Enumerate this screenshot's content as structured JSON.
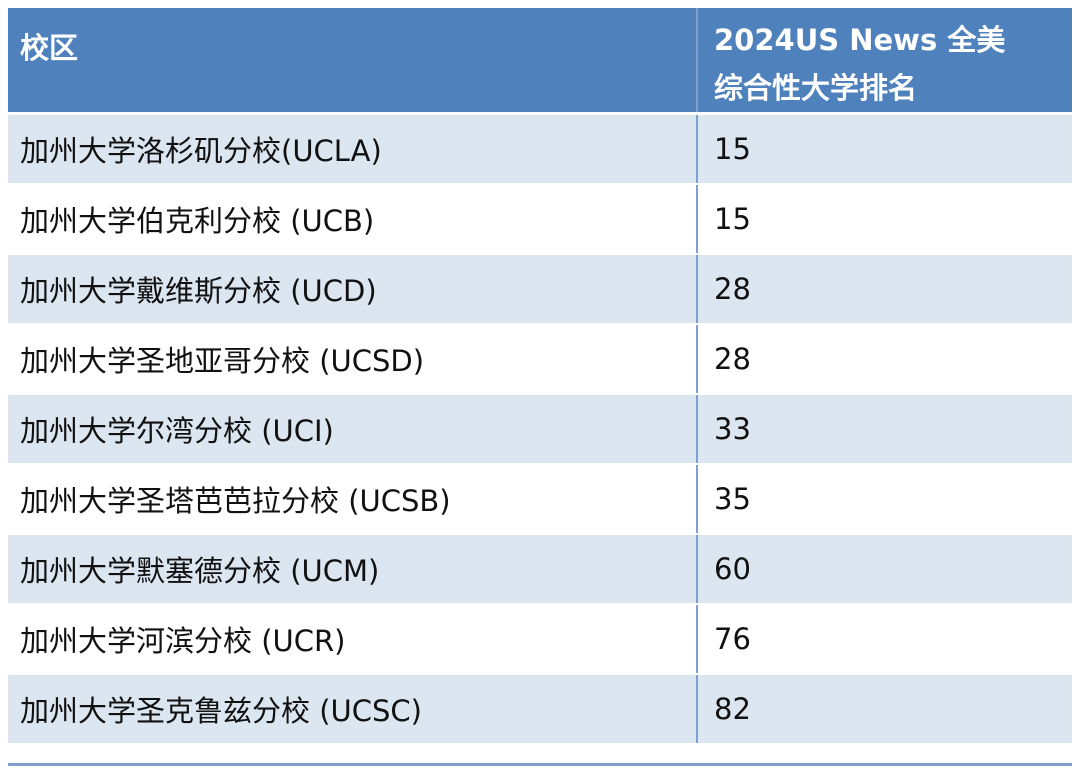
{
  "table": {
    "headers": {
      "campus": "校区",
      "rank_line1": "2024US News 全美",
      "rank_line2": "综合性大学排名"
    },
    "rows": [
      {
        "campus": "加州大学洛杉矶分校(UCLA)",
        "rank": "15"
      },
      {
        "campus": "加州大学伯克利分校 (UCB)",
        "rank": "15"
      },
      {
        "campus": "加州大学戴维斯分校 (UCD)",
        "rank": "28"
      },
      {
        "campus": "加州大学圣地亚哥分校 (UCSD)",
        "rank": "28"
      },
      {
        "campus": "加州大学尔湾分校 (UCI)",
        "rank": "33"
      },
      {
        "campus": "加州大学圣塔芭芭拉分校 (UCSB)",
        "rank": "35"
      },
      {
        "campus": "加州大学默塞德分校 (UCM)",
        "rank": "60"
      },
      {
        "campus": "加州大学河滨分校 (UCR)",
        "rank": "76"
      },
      {
        "campus": "加州大学圣克鲁兹分校 (UCSC)",
        "rank": "82"
      }
    ]
  },
  "colors": {
    "header_bg": "#4f81bd",
    "odd_row_bg": "#dce6f1",
    "even_row_bg": "#ffffff"
  }
}
